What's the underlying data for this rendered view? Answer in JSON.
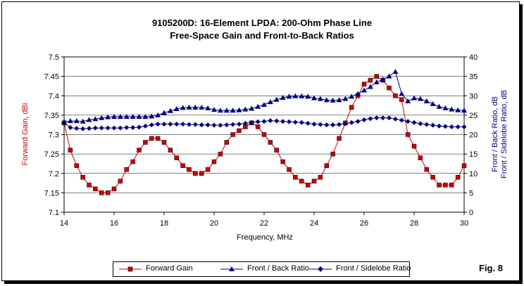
{
  "chart_data": {
    "type": "line",
    "title": "9105200D:  16-Element LPDA: 200-Ohm Phase Line",
    "subtitle": "Free-Space Gain and Front-to-Back Ratios",
    "xlabel": "Frequency, MHz",
    "ylabel_left": "Forward Gain, dBi",
    "ylabel_right_1": "Front / Back Ratio,  dB",
    "ylabel_right_2": "Front / Sidelobe Ratio,  dB",
    "xlim": [
      14,
      30
    ],
    "ylim_left": [
      7.1,
      7.5
    ],
    "ylim_right": [
      0,
      40
    ],
    "x_ticks": [
      "14",
      "16",
      "18",
      "20",
      "22",
      "24",
      "26",
      "28",
      "30"
    ],
    "y_left_ticks": [
      "7.1",
      "7.15",
      "7.2",
      "7.25",
      "7.3",
      "7.35",
      "7.4",
      "7.45",
      "7.5"
    ],
    "y_right_ticks": [
      "0",
      "5",
      "10",
      "15",
      "20",
      "25",
      "30",
      "35",
      "40"
    ],
    "grid": "horizontal",
    "legend_position": "bottom",
    "figure_label": "Fig. 8",
    "colors": {
      "gain": "#cc0000",
      "fb": "#000080",
      "fs": "#000080"
    },
    "series": [
      {
        "name": "Forward Gain",
        "axis": "left",
        "marker": "square",
        "x": [
          14.0,
          14.25,
          14.5,
          14.75,
          15.0,
          15.25,
          15.5,
          15.75,
          16.0,
          16.25,
          16.5,
          16.75,
          17.0,
          17.25,
          17.5,
          17.75,
          18.0,
          18.25,
          18.5,
          18.75,
          19.0,
          19.25,
          19.5,
          19.75,
          20.0,
          20.25,
          20.5,
          20.75,
          21.0,
          21.25,
          21.5,
          21.75,
          22.0,
          22.25,
          22.5,
          22.75,
          23.0,
          23.25,
          23.5,
          23.75,
          24.0,
          24.25,
          24.5,
          24.75,
          25.0,
          25.25,
          25.5,
          25.75,
          26.0,
          26.25,
          26.5,
          26.75,
          27.0,
          27.25,
          27.5,
          27.75,
          28.0,
          28.25,
          28.5,
          28.75,
          29.0,
          29.25,
          29.5,
          29.75,
          30.0
        ],
        "values": [
          7.33,
          7.26,
          7.22,
          7.19,
          7.17,
          7.16,
          7.15,
          7.15,
          7.16,
          7.18,
          7.21,
          7.23,
          7.26,
          7.28,
          7.29,
          7.29,
          7.28,
          7.26,
          7.24,
          7.22,
          7.21,
          7.2,
          7.2,
          7.21,
          7.23,
          7.25,
          7.28,
          7.3,
          7.31,
          7.32,
          7.33,
          7.32,
          7.3,
          7.28,
          7.26,
          7.23,
          7.21,
          7.19,
          7.18,
          7.17,
          7.18,
          7.19,
          7.22,
          7.25,
          7.29,
          7.33,
          7.37,
          7.4,
          7.43,
          7.44,
          7.45,
          7.44,
          7.42,
          7.4,
          7.39,
          7.3,
          7.27,
          7.24,
          7.21,
          7.19,
          7.17,
          7.17,
          7.17,
          7.19,
          7.22
        ]
      },
      {
        "name": "Front / Back Ratio",
        "axis": "right",
        "marker": "triangle",
        "x": [
          14.0,
          14.25,
          14.5,
          14.75,
          15.0,
          15.25,
          15.5,
          15.75,
          16.0,
          16.25,
          16.5,
          16.75,
          17.0,
          17.25,
          17.5,
          17.75,
          18.0,
          18.25,
          18.5,
          18.75,
          19.0,
          19.25,
          19.5,
          19.75,
          20.0,
          20.25,
          20.5,
          20.75,
          21.0,
          21.25,
          21.5,
          21.75,
          22.0,
          22.25,
          22.5,
          22.75,
          23.0,
          23.25,
          23.5,
          23.75,
          24.0,
          24.25,
          24.5,
          24.75,
          25.0,
          25.25,
          25.5,
          25.75,
          26.0,
          26.25,
          26.5,
          26.75,
          27.0,
          27.25,
          27.5,
          27.75,
          28.0,
          28.25,
          28.5,
          28.75,
          29.0,
          29.25,
          29.5,
          29.75,
          30.0
        ],
        "values": [
          23.3,
          23.5,
          23.5,
          23.4,
          23.8,
          24.0,
          24.3,
          24.5,
          24.6,
          24.6,
          24.6,
          24.6,
          24.6,
          24.6,
          24.7,
          25.0,
          25.6,
          26.1,
          26.6,
          26.9,
          27.0,
          27.0,
          27.0,
          26.8,
          26.4,
          26.2,
          26.2,
          26.2,
          26.3,
          26.5,
          26.7,
          27.2,
          27.7,
          28.4,
          29.0,
          29.5,
          29.8,
          29.9,
          29.9,
          29.8,
          29.4,
          29.2,
          28.9,
          28.8,
          28.9,
          29.2,
          29.8,
          30.5,
          31.4,
          32.3,
          33.5,
          34.2,
          35.0,
          36.2,
          30.5,
          28.6,
          29.4,
          29.2,
          28.6,
          27.9,
          27.2,
          26.8,
          26.5,
          26.3,
          26.2
        ]
      },
      {
        "name": "Front / Sidelobe Ratio",
        "axis": "right",
        "marker": "diamond",
        "x": [
          14.0,
          14.25,
          14.5,
          14.75,
          15.0,
          15.25,
          15.5,
          15.75,
          16.0,
          16.25,
          16.5,
          16.75,
          17.0,
          17.25,
          17.5,
          17.75,
          18.0,
          18.25,
          18.5,
          18.75,
          19.0,
          19.25,
          19.5,
          19.75,
          20.0,
          20.25,
          20.5,
          20.75,
          21.0,
          21.25,
          21.5,
          21.75,
          22.0,
          22.25,
          22.5,
          22.75,
          23.0,
          23.25,
          23.5,
          23.75,
          24.0,
          24.25,
          24.5,
          24.75,
          25.0,
          25.25,
          25.5,
          25.75,
          26.0,
          26.25,
          26.5,
          26.75,
          27.0,
          27.25,
          27.5,
          27.75,
          28.0,
          28.25,
          28.5,
          28.75,
          29.0,
          29.25,
          29.5,
          29.75,
          30.0
        ],
        "values": [
          23.0,
          21.8,
          21.6,
          21.5,
          21.6,
          21.7,
          21.7,
          21.7,
          21.7,
          21.7,
          21.8,
          21.8,
          21.9,
          22.2,
          22.5,
          22.7,
          22.7,
          22.7,
          22.7,
          22.7,
          22.6,
          22.6,
          22.5,
          22.5,
          22.4,
          22.4,
          22.5,
          22.6,
          22.7,
          22.9,
          23.1,
          23.3,
          23.4,
          23.6,
          23.5,
          23.4,
          23.3,
          23.2,
          23.1,
          22.9,
          22.7,
          22.6,
          22.5,
          22.5,
          22.6,
          22.8,
          23.1,
          23.4,
          23.8,
          24.1,
          24.3,
          24.3,
          24.3,
          24.0,
          23.7,
          23.4,
          23.1,
          22.8,
          22.6,
          22.4,
          22.2,
          22.1,
          22.0,
          22.0,
          22.0
        ]
      }
    ]
  }
}
